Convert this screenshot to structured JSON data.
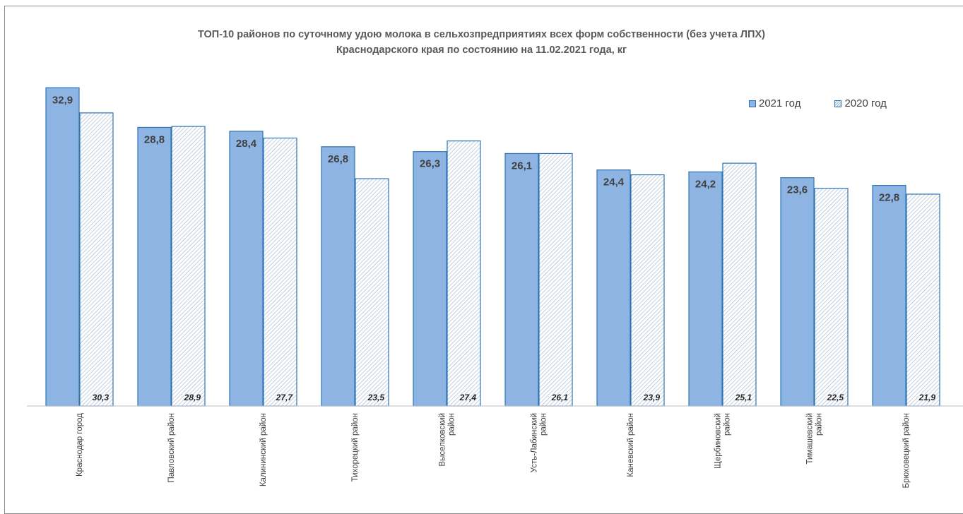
{
  "chart_data": {
    "type": "bar",
    "title_line1": "ТОП-10 районов по суточному удою молока  в сельхозпредприятиях всех форм собственности (без учета ЛПХ)",
    "title_line2": "Краснодарского края по состоянию на 11.02.2021 года, кг",
    "categories": [
      [
        "Краснодар город"
      ],
      [
        "Павловский район"
      ],
      [
        "Калининский район"
      ],
      [
        "Тихорецкий район"
      ],
      [
        "Выселковский",
        "район"
      ],
      [
        "Усть-Лабинский",
        "район"
      ],
      [
        "Каневский район"
      ],
      [
        "Щербиновский",
        "район"
      ],
      [
        "Тимашевский",
        "район"
      ],
      [
        "Брюховецкий район"
      ]
    ],
    "series": [
      {
        "name": "2021 год",
        "values": [
          32.9,
          28.8,
          28.4,
          26.8,
          26.3,
          26.1,
          24.4,
          24.2,
          23.6,
          22.8
        ],
        "labels": [
          "32,9",
          "28,8",
          "28,4",
          "26,8",
          "26,3",
          "26,1",
          "24,4",
          "24,2",
          "23,6",
          "22,8"
        ]
      },
      {
        "name": "2020 год",
        "values": [
          30.3,
          28.9,
          27.7,
          23.5,
          27.4,
          26.1,
          23.9,
          25.1,
          22.5,
          21.9
        ],
        "labels": [
          "30,3",
          "28,9",
          "27,7",
          "23,5",
          "27,4",
          "26,1",
          "23,9",
          "25,1",
          "22,5",
          "21,9"
        ]
      }
    ],
    "ylim": [
      0,
      34
    ],
    "grid": false,
    "legend_position": "top-right",
    "colors": {
      "bar_2021_fill": "#8eb4e3",
      "bar_border": "#2e74b5",
      "hatch_line": "#9ab3cf",
      "axis": "#bfbfbf",
      "title": "#595959",
      "text": "#404040"
    }
  }
}
